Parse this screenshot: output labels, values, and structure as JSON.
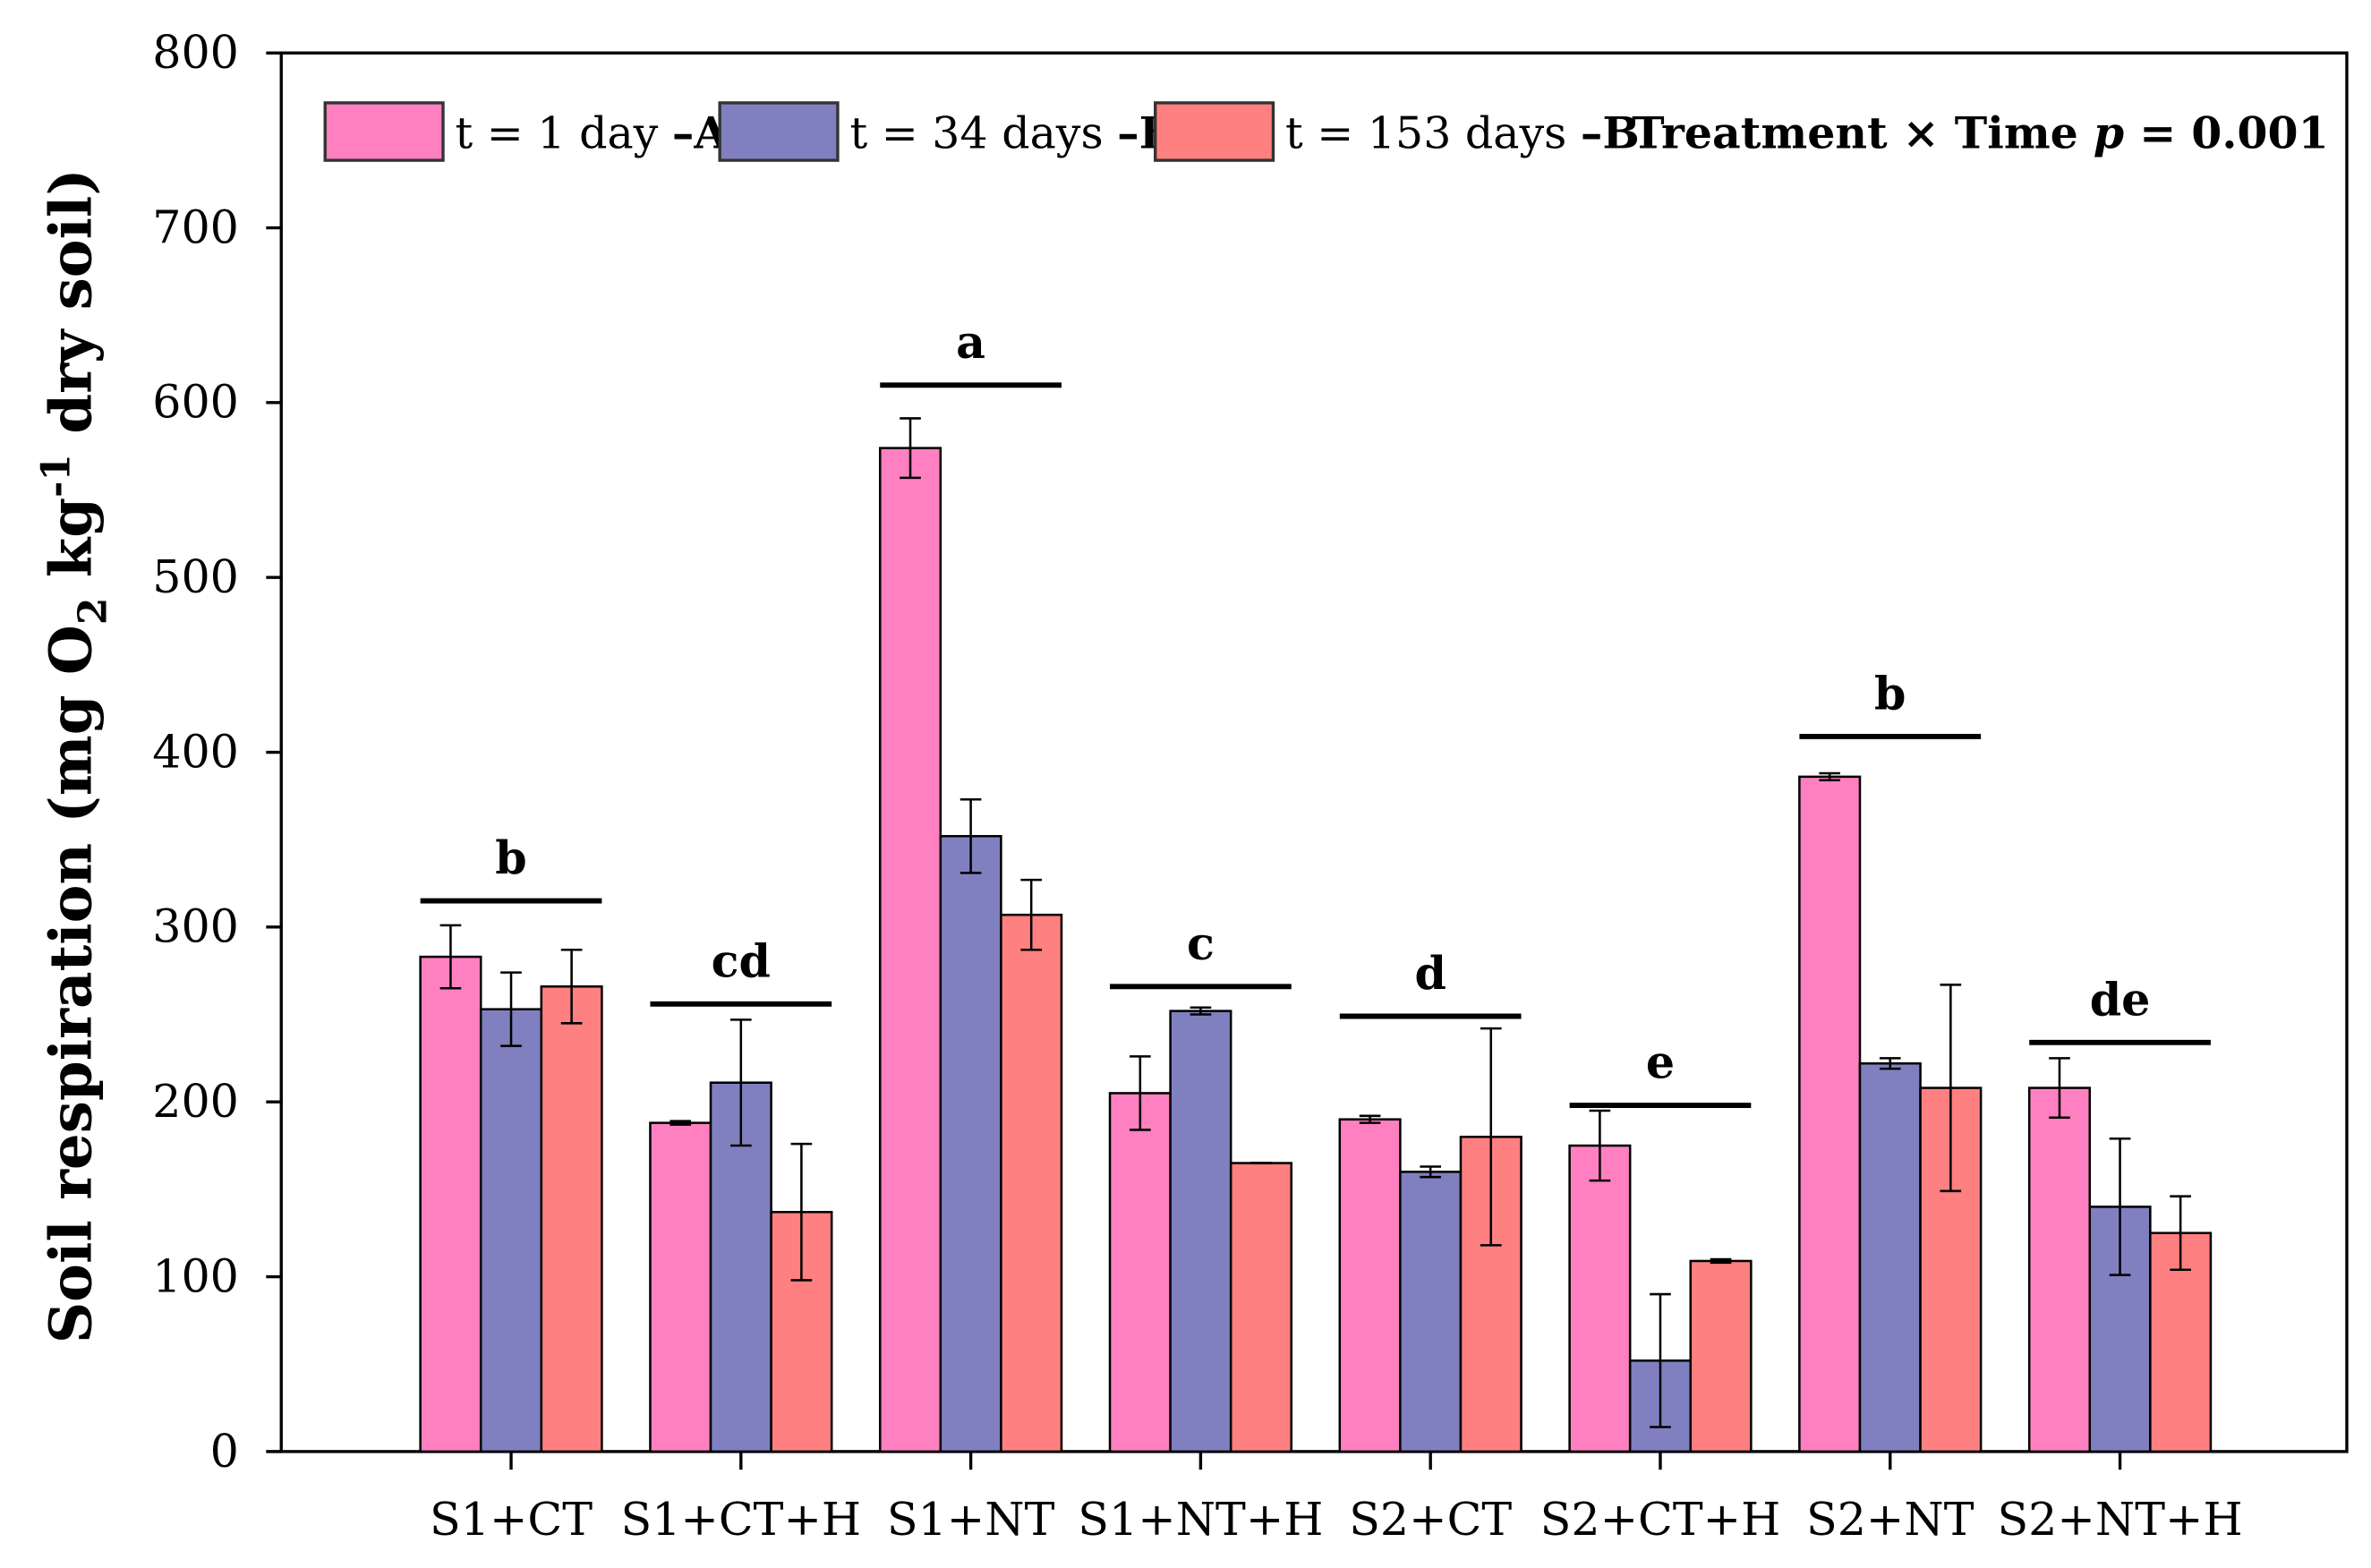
{
  "chart_data": {
    "type": "bar",
    "title": "",
    "xlabel": "",
    "ylabel": "Soil respiration (mg O2 kg-1 dry soil)",
    "ylabel_parts": {
      "a": "Soil respiration (mg O",
      "sub": "2",
      "b": " kg",
      "sup": "-1",
      "c": " dry soil)"
    },
    "ylim": [
      0,
      800
    ],
    "yticks": [
      0,
      100,
      200,
      300,
      400,
      500,
      600,
      700,
      800
    ],
    "grid": false,
    "legend_placement": "top",
    "categories": [
      "S1+CT",
      "S1+CT+H",
      "S1+NT",
      "S1+NT+H",
      "S2+CT",
      "S2+CT+H",
      "S2+NT",
      "S2+NT+H"
    ],
    "series": [
      {
        "name": "t = 1 day",
        "letter": "A",
        "color": "#ff80c0",
        "values": [
          283,
          188,
          574,
          205,
          190,
          175,
          386,
          208
        ],
        "errors": [
          18,
          1,
          17,
          21,
          2,
          20,
          2,
          17
        ]
      },
      {
        "name": "t = 34 days",
        "letter": "B",
        "color": "#8080c0",
        "values": [
          253,
          211,
          352,
          252,
          160,
          52,
          222,
          140
        ],
        "errors": [
          21,
          36,
          21,
          2,
          3,
          38,
          3,
          39
        ]
      },
      {
        "name": "t = 153 days",
        "letter": "B",
        "color": "#ff8080",
        "values": [
          266,
          137,
          307,
          165,
          180,
          109,
          208,
          125
        ],
        "errors": [
          21,
          39,
          20,
          0,
          62,
          1,
          59,
          21
        ]
      }
    ],
    "group_letters": [
      "b",
      "cd",
      "a",
      "c",
      "d",
      "e",
      "b",
      "de"
    ],
    "group_letter_levels": [
      315,
      256,
      610,
      266,
      249,
      198,
      409,
      234
    ],
    "annotation": {
      "a": "Treatment × Time ",
      "p": "p",
      "b": " = 0.001"
    }
  }
}
